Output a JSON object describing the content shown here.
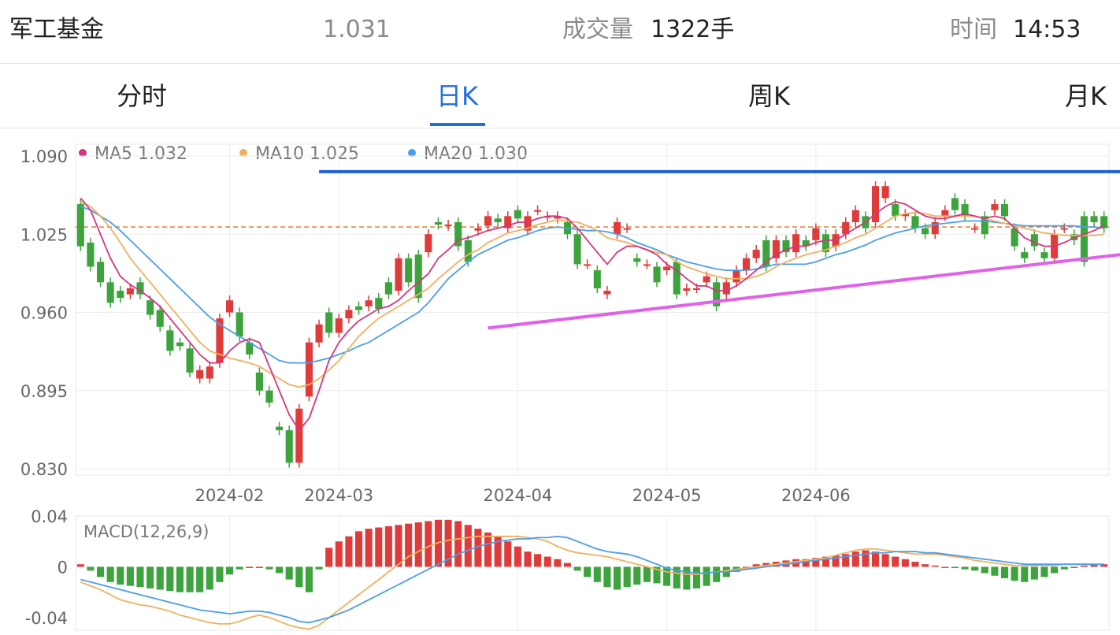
{
  "header": {
    "name": "军工基金",
    "price": "1.031",
    "volume_label": "成交量",
    "volume_value": "1322手",
    "time_label": "时间",
    "time_value": "14:53"
  },
  "tabs": [
    {
      "label": "分时",
      "active": false
    },
    {
      "label": "日K",
      "active": true
    },
    {
      "label": "周K",
      "active": false
    },
    {
      "label": "月K",
      "active": false
    }
  ],
  "legend": [
    {
      "name": "MA5",
      "value": "1.032",
      "color": "#d6337f"
    },
    {
      "name": "MA10",
      "value": "1.025",
      "color": "#f0b060"
    },
    {
      "name": "MA20",
      "value": "1.030",
      "color": "#4a9fe8"
    }
  ],
  "colors": {
    "up": "#e03b3b",
    "down": "#3da33d",
    "ma5": "#d6337f",
    "ma10": "#f0b060",
    "ma20": "#4a9fe8",
    "resistance": "#1f5fe0",
    "support": "#e060e8",
    "ref": "#e87a2a",
    "macd_dif": "#4a9fe8",
    "macd_dea": "#f0b060"
  },
  "chart_data": [
    {
      "type": "candlestick",
      "y_ticks": [
        "1.090",
        "1.025",
        "0.960",
        "0.895",
        "0.830"
      ],
      "ylim": [
        0.83,
        1.09
      ],
      "x_ticks": [
        "2024-02",
        "2024-03",
        "2024-04",
        "2024-05",
        "2024-06"
      ],
      "x_tick_index": [
        15,
        26,
        44,
        59,
        74
      ],
      "reference_price": 1.031,
      "candles": [
        [
          1.05,
          1.015
        ],
        [
          1.018,
          0.998
        ],
        [
          1.002,
          0.985
        ],
        [
          0.985,
          0.968
        ],
        [
          0.978,
          0.972
        ],
        [
          0.975,
          0.98
        ],
        [
          0.985,
          0.975
        ],
        [
          0.97,
          0.958
        ],
        [
          0.962,
          0.948
        ],
        [
          0.945,
          0.928
        ],
        [
          0.935,
          0.932
        ],
        [
          0.93,
          0.91
        ],
        [
          0.905,
          0.912
        ],
        [
          0.905,
          0.915
        ],
        [
          0.918,
          0.955
        ],
        [
          0.96,
          0.97
        ],
        [
          0.96,
          0.94
        ],
        [
          0.935,
          0.925
        ],
        [
          0.91,
          0.895
        ],
        [
          0.895,
          0.885
        ],
        [
          0.865,
          0.862
        ],
        [
          0.862,
          0.835
        ],
        [
          0.835,
          0.88
        ],
        [
          0.89,
          0.935
        ],
        [
          0.935,
          0.95
        ],
        [
          0.96,
          0.943
        ],
        [
          0.943,
          0.955
        ],
        [
          0.955,
          0.962
        ],
        [
          0.965,
          0.962
        ],
        [
          0.965,
          0.97
        ],
        [
          0.972,
          0.963
        ],
        [
          0.985,
          0.975
        ],
        [
          0.978,
          1.005
        ],
        [
          1.005,
          0.985
        ],
        [
          1.008,
          0.972
        ],
        [
          1.01,
          1.025
        ],
        [
          1.035,
          1.033
        ],
        [
          1.032,
          1.033
        ],
        [
          1.035,
          1.015
        ],
        [
          1.02,
          1.002
        ],
        [
          1.028,
          1.03
        ],
        [
          1.032,
          1.04
        ],
        [
          1.038,
          1.035
        ],
        [
          1.03,
          1.04
        ],
        [
          1.045,
          1.038
        ],
        [
          1.028,
          1.04
        ],
        [
          1.045,
          1.045
        ],
        [
          1.04,
          1.04
        ],
        [
          1.038,
          1.04
        ],
        [
          1.035,
          1.025
        ],
        [
          1.025,
          1.0
        ],
        [
          1.0,
          1.0
        ],
        [
          0.995,
          0.98
        ],
        [
          0.975,
          0.978
        ],
        [
          1.025,
          1.035
        ],
        [
          1.03,
          1.03
        ],
        [
          1.005,
          1.002
        ],
        [
          1.0,
          1.0
        ],
        [
          0.998,
          0.985
        ],
        [
          0.995,
          0.998
        ],
        [
          1.002,
          0.975
        ],
        [
          0.978,
          0.98
        ],
        [
          0.98,
          0.98
        ],
        [
          0.985,
          0.99
        ],
        [
          0.985,
          0.965
        ],
        [
          0.975,
          0.985
        ],
        [
          0.985,
          0.995
        ],
        [
          0.995,
          1.005
        ],
        [
          1.005,
          1.012
        ],
        [
          1.02,
          0.998
        ],
        [
          1.005,
          1.02
        ],
        [
          1.02,
          1.01
        ],
        [
          1.01,
          1.025
        ],
        [
          1.02,
          1.015
        ],
        [
          1.02,
          1.03
        ],
        [
          1.025,
          1.01
        ],
        [
          1.015,
          1.025
        ],
        [
          1.025,
          1.035
        ],
        [
          1.035,
          1.045
        ],
        [
          1.04,
          1.03
        ],
        [
          1.035,
          1.065
        ],
        [
          1.055,
          1.065
        ],
        [
          1.05,
          1.04
        ],
        [
          1.04,
          1.042
        ],
        [
          1.04,
          1.03
        ],
        [
          1.03,
          1.025
        ],
        [
          1.025,
          1.035
        ],
        [
          1.04,
          1.045
        ],
        [
          1.055,
          1.045
        ],
        [
          1.05,
          1.04
        ],
        [
          1.03,
          1.03
        ],
        [
          1.04,
          1.025
        ],
        [
          1.045,
          1.05
        ],
        [
          1.05,
          1.04
        ],
        [
          1.03,
          1.015
        ],
        [
          1.01,
          1.005
        ],
        [
          1.025,
          1.015
        ],
        [
          1.01,
          1.005
        ],
        [
          1.005,
          1.025
        ],
        [
          1.03,
          1.03
        ],
        [
          1.025,
          1.02
        ],
        [
          1.04,
          1.002
        ],
        [
          1.04,
          1.035
        ],
        [
          1.04,
          1.03
        ]
      ],
      "ma5": [
        1.055,
        1.045,
        1.025,
        1.005,
        0.99,
        0.983,
        0.978,
        0.972,
        0.965,
        0.955,
        0.945,
        0.935,
        0.925,
        0.918,
        0.918,
        0.928,
        0.935,
        0.938,
        0.935,
        0.915,
        0.895,
        0.875,
        0.862,
        0.872,
        0.895,
        0.92,
        0.935,
        0.945,
        0.953,
        0.958,
        0.963,
        0.965,
        0.97,
        0.978,
        0.985,
        0.992,
        1.005,
        1.012,
        1.02,
        1.022,
        1.025,
        1.028,
        1.03,
        1.032,
        1.035,
        1.035,
        1.038,
        1.04,
        1.04,
        1.038,
        1.03,
        1.02,
        1.01,
        1.0,
        1.01,
        1.015,
        1.015,
        1.012,
        1.008,
        1.0,
        0.995,
        0.988,
        0.982,
        0.982,
        0.978,
        0.978,
        0.982,
        0.988,
        0.995,
        1.002,
        1.008,
        1.012,
        1.015,
        1.015,
        1.018,
        1.02,
        1.02,
        1.025,
        1.03,
        1.035,
        1.042,
        1.048,
        1.052,
        1.05,
        1.045,
        1.04,
        1.038,
        1.038,
        1.04,
        1.042,
        1.04,
        1.038,
        1.04,
        1.038,
        1.03,
        1.022,
        1.018,
        1.015,
        1.015,
        1.018,
        1.022,
        1.025,
        1.028,
        1.032
      ],
      "ma10": [
        1.052,
        1.048,
        1.04,
        1.03,
        1.018,
        1.005,
        0.995,
        0.985,
        0.975,
        0.965,
        0.955,
        0.945,
        0.935,
        0.928,
        0.925,
        0.922,
        0.92,
        0.918,
        0.915,
        0.91,
        0.905,
        0.9,
        0.898,
        0.9,
        0.905,
        0.912,
        0.92,
        0.93,
        0.94,
        0.948,
        0.955,
        0.96,
        0.965,
        0.97,
        0.975,
        0.98,
        0.988,
        0.995,
        1.002,
        1.008,
        1.012,
        1.018,
        1.022,
        1.026,
        1.028,
        1.03,
        1.033,
        1.035,
        1.037,
        1.036,
        1.035,
        1.032,
        1.028,
        1.022,
        1.02,
        1.018,
        1.015,
        1.012,
        1.01,
        1.008,
        1.002,
        0.998,
        0.995,
        0.992,
        0.99,
        0.988,
        0.988,
        0.988,
        0.99,
        0.993,
        0.998,
        1.002,
        1.005,
        1.008,
        1.01,
        1.012,
        1.015,
        1.018,
        1.022,
        1.025,
        1.03,
        1.035,
        1.04,
        1.042,
        1.043,
        1.042,
        1.04,
        1.04,
        1.04,
        1.04,
        1.04,
        1.038,
        1.036,
        1.034,
        1.032,
        1.03,
        1.028,
        1.026,
        1.025,
        1.024,
        1.024,
        1.024,
        1.024,
        1.025
      ],
      "ma20": [
        1.048,
        1.045,
        1.04,
        1.035,
        1.028,
        1.02,
        1.012,
        1.004,
        0.996,
        0.988,
        0.98,
        0.972,
        0.964,
        0.956,
        0.95,
        0.945,
        0.94,
        0.935,
        0.93,
        0.925,
        0.92,
        0.918,
        0.918,
        0.918,
        0.92,
        0.922,
        0.925,
        0.928,
        0.932,
        0.935,
        0.94,
        0.945,
        0.95,
        0.955,
        0.96,
        0.968,
        0.978,
        0.988,
        0.995,
        1.002,
        1.008,
        1.012,
        1.016,
        1.02,
        1.022,
        1.025,
        1.028,
        1.03,
        1.031,
        1.03,
        1.029,
        1.028,
        1.028,
        1.027,
        1.025,
        1.022,
        1.018,
        1.015,
        1.012,
        1.008,
        1.005,
        1.002,
        1.0,
        0.998,
        0.996,
        0.995,
        0.995,
        0.995,
        0.996,
        0.998,
        1.0,
        1.0,
        1.0,
        1.0,
        1.002,
        1.005,
        1.008,
        1.01,
        1.013,
        1.016,
        1.02,
        1.023,
        1.026,
        1.028,
        1.03,
        1.032,
        1.033,
        1.034,
        1.035,
        1.036,
        1.036,
        1.036,
        1.035,
        1.034,
        1.033,
        1.032,
        1.032,
        1.032,
        1.032,
        1.032,
        1.032,
        1.031,
        1.031,
        1.03
      ],
      "annotations": [
        {
          "kind": "resistance-line",
          "from": [
            24,
            1.077
          ],
          "to": [
            104,
            1.077
          ]
        },
        {
          "kind": "support-line",
          "from": [
            41,
            0.947
          ],
          "to": [
            104,
            1.008
          ]
        }
      ]
    },
    {
      "type": "macd",
      "title": "MACD(12,26,9)",
      "y_ticks": [
        "0.04",
        "0",
        "-0.04"
      ],
      "ylim": [
        -0.05,
        0.04
      ],
      "hist": [
        0.002,
        -0.003,
        -0.008,
        -0.012,
        -0.014,
        -0.015,
        -0.016,
        -0.017,
        -0.018,
        -0.019,
        -0.02,
        -0.02,
        -0.02,
        -0.018,
        -0.012,
        -0.006,
        -0.002,
        0.0,
        0.0,
        -0.002,
        -0.005,
        -0.01,
        -0.016,
        -0.02,
        -0.002,
        0.015,
        0.02,
        0.024,
        0.028,
        0.03,
        0.031,
        0.032,
        0.033,
        0.034,
        0.035,
        0.036,
        0.037,
        0.037,
        0.036,
        0.033,
        0.03,
        0.027,
        0.024,
        0.02,
        0.016,
        0.012,
        0.01,
        0.008,
        0.006,
        0.003,
        -0.003,
        -0.008,
        -0.012,
        -0.016,
        -0.018,
        -0.016,
        -0.014,
        -0.012,
        -0.013,
        -0.015,
        -0.017,
        -0.018,
        -0.017,
        -0.015,
        -0.012,
        -0.008,
        -0.004,
        0.0,
        0.002,
        0.003,
        0.004,
        0.005,
        0.006,
        0.006,
        0.007,
        0.008,
        0.009,
        0.01,
        0.012,
        0.013,
        0.012,
        0.01,
        0.008,
        0.006,
        0.004,
        0.002,
        0.001,
        0.0,
        -0.001,
        -0.002,
        -0.003,
        -0.005,
        -0.007,
        -0.009,
        -0.011,
        -0.012,
        -0.01,
        -0.008,
        -0.005,
        -0.002,
        0.0,
        0.001,
        0.002,
        0.002
      ],
      "dif": [
        -0.01,
        -0.012,
        -0.014,
        -0.016,
        -0.018,
        -0.02,
        -0.022,
        -0.024,
        -0.026,
        -0.028,
        -0.03,
        -0.032,
        -0.034,
        -0.035,
        -0.036,
        -0.037,
        -0.036,
        -0.035,
        -0.035,
        -0.036,
        -0.038,
        -0.04,
        -0.043,
        -0.044,
        -0.042,
        -0.04,
        -0.037,
        -0.034,
        -0.03,
        -0.026,
        -0.022,
        -0.018,
        -0.014,
        -0.01,
        -0.006,
        -0.002,
        0.002,
        0.006,
        0.01,
        0.013,
        0.016,
        0.018,
        0.02,
        0.021,
        0.022,
        0.022,
        0.023,
        0.023,
        0.024,
        0.023,
        0.02,
        0.017,
        0.014,
        0.012,
        0.011,
        0.01,
        0.008,
        0.005,
        0.002,
        -0.001,
        -0.003,
        -0.004,
        -0.005,
        -0.005,
        -0.004,
        -0.004,
        -0.003,
        -0.002,
        -0.001,
        0.0,
        0.001,
        0.002,
        0.003,
        0.004,
        0.005,
        0.006,
        0.007,
        0.008,
        0.009,
        0.01,
        0.011,
        0.011,
        0.012,
        0.012,
        0.012,
        0.011,
        0.011,
        0.01,
        0.009,
        0.008,
        0.007,
        0.006,
        0.005,
        0.004,
        0.003,
        0.002,
        0.002,
        0.002,
        0.002,
        0.002,
        0.002,
        0.002,
        0.002,
        0.002
      ],
      "dea": [
        -0.012,
        -0.015,
        -0.018,
        -0.022,
        -0.026,
        -0.028,
        -0.03,
        -0.031,
        -0.033,
        -0.035,
        -0.038,
        -0.04,
        -0.042,
        -0.044,
        -0.045,
        -0.045,
        -0.043,
        -0.04,
        -0.038,
        -0.04,
        -0.043,
        -0.046,
        -0.048,
        -0.049,
        -0.046,
        -0.04,
        -0.034,
        -0.028,
        -0.022,
        -0.016,
        -0.01,
        -0.004,
        0.002,
        0.008,
        0.012,
        0.016,
        0.019,
        0.021,
        0.022,
        0.023,
        0.024,
        0.024,
        0.024,
        0.024,
        0.024,
        0.023,
        0.022,
        0.02,
        0.016,
        0.013,
        0.011,
        0.01,
        0.009,
        0.008,
        0.006,
        0.004,
        0.002,
        0.0,
        -0.002,
        -0.004,
        -0.005,
        -0.006,
        -0.006,
        -0.005,
        -0.004,
        -0.003,
        -0.002,
        -0.001,
        0.0,
        0.001,
        0.002,
        0.003,
        0.004,
        0.005,
        0.006,
        0.007,
        0.009,
        0.011,
        0.013,
        0.014,
        0.014,
        0.013,
        0.012,
        0.011,
        0.01,
        0.01,
        0.01,
        0.009,
        0.008,
        0.007,
        0.005,
        0.004,
        0.003,
        0.002,
        0.001,
        0.001,
        0.001,
        0.001,
        0.001,
        0.002,
        0.002,
        0.002,
        0.002,
        0.002
      ]
    }
  ]
}
